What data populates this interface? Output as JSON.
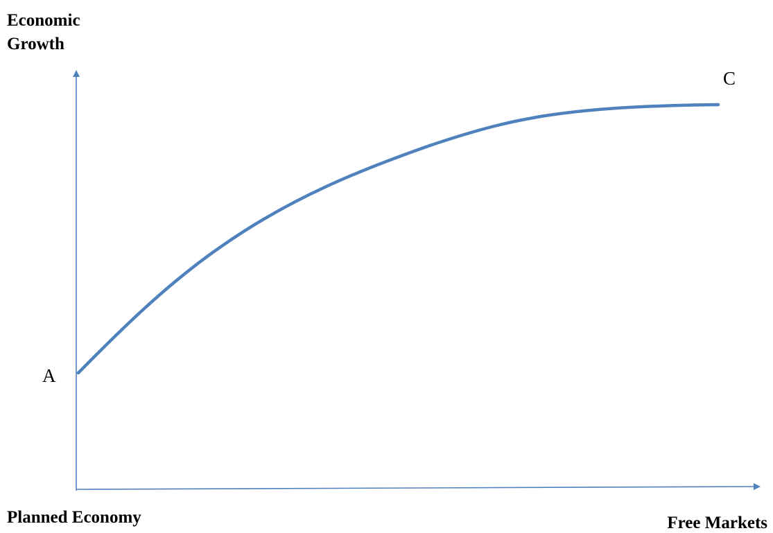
{
  "diagram": {
    "y_axis_label_line1": "Economic",
    "y_axis_label_line2": "Growth",
    "x_axis_start_label": "Planned Economy",
    "x_axis_end_label": "Free Markets",
    "curve_start_label": "A",
    "curve_end_label": "C",
    "colors": {
      "axis": "#4f81bd",
      "curve": "#4f81bd",
      "text": "#000000"
    }
  }
}
